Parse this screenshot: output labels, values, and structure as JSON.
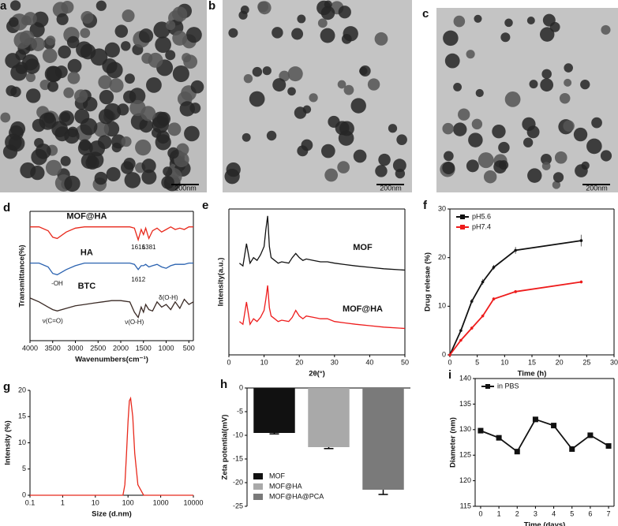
{
  "images": [
    {
      "label": "a",
      "scale_bar": "200nm"
    },
    {
      "label": "b",
      "scale_bar": "200nm"
    },
    {
      "label": "c",
      "scale_bar": "200nm"
    }
  ],
  "chart_data": [
    {
      "type": "line",
      "panel_label": "d",
      "ylabel": "Transmittance(%)",
      "xlabel": "Wavenumbers(cm⁻¹)",
      "x": [
        4000,
        3800,
        3600,
        3500,
        3400,
        3200,
        3000,
        2800,
        2600,
        2400,
        2200,
        2000,
        1800,
        1700,
        1616,
        1550,
        1500,
        1450,
        1381,
        1300,
        1200,
        1100,
        1000,
        900,
        800,
        700,
        600,
        500,
        400
      ],
      "series": [
        {
          "name": "MOF@HA",
          "color": "#e8291c",
          "values": [
            88,
            88,
            85,
            80,
            79,
            84,
            87,
            88,
            88,
            88,
            88,
            88,
            88,
            87,
            78,
            86,
            82,
            87,
            79,
            85,
            87,
            84,
            86,
            88,
            86,
            87,
            86,
            88,
            88
          ]
        },
        {
          "name": "HA",
          "color": "#2a62b0",
          "values": [
            60,
            60,
            57,
            52,
            51,
            55,
            58,
            60,
            60,
            60,
            60,
            60,
            60,
            59,
            55,
            58,
            58,
            59,
            57,
            58,
            59,
            57,
            56,
            58,
            59,
            59,
            59,
            60,
            60
          ]
        },
        {
          "name": "BTC",
          "color": "#3a2a25",
          "values": [
            33,
            30,
            26,
            24,
            23,
            25,
            27,
            28,
            29,
            30,
            31,
            31,
            30,
            22,
            18,
            26,
            22,
            28,
            24,
            23,
            30,
            26,
            28,
            24,
            30,
            25,
            32,
            28,
            30
          ]
        }
      ],
      "annotations": [
        "1616",
        "1381",
        "-OH",
        "1612",
        "ν(C=O)",
        "ν(O-H)",
        "δ(O-H)"
      ],
      "xlim": [
        4000,
        400
      ],
      "xticks": [
        4000,
        3500,
        3000,
        2500,
        2000,
        1500,
        1000,
        500
      ],
      "ylim": [
        0,
        100
      ],
      "yticks": []
    },
    {
      "type": "line",
      "panel_label": "e",
      "ylabel": "Intensity(a.u.)",
      "xlabel": "2θ(°)",
      "x": [
        3,
        4,
        5,
        6,
        7,
        8,
        9,
        10,
        10.5,
        11,
        11.5,
        12,
        13,
        14,
        15,
        17,
        18,
        19,
        20,
        21,
        22,
        24,
        26,
        28,
        30,
        33,
        36,
        40,
        44,
        50
      ],
      "series": [
        {
          "name": "MOF",
          "color": "#111111",
          "values": [
            66,
            64,
            80,
            66,
            70,
            68,
            72,
            78,
            90,
            100,
            78,
            70,
            68,
            66,
            67,
            66,
            70,
            73,
            70,
            68,
            69,
            68,
            67,
            67,
            66,
            65,
            64,
            63,
            62,
            61
          ]
        },
        {
          "name": "MOF@HA",
          "color": "#ee1c1c",
          "values": [
            24,
            22,
            38,
            22,
            26,
            24,
            27,
            32,
            40,
            50,
            34,
            28,
            26,
            24,
            25,
            24,
            27,
            32,
            28,
            26,
            28,
            27,
            26,
            26,
            24,
            23,
            22,
            21,
            20,
            19
          ]
        }
      ],
      "xlim": [
        0,
        50
      ],
      "xticks": [
        0,
        10,
        20,
        30,
        40,
        50
      ],
      "ylim": [
        0,
        105
      ],
      "yticks": []
    },
    {
      "type": "line",
      "panel_label": "f",
      "ylabel": "Drug relesae (%)",
      "xlabel": "Time (h)",
      "legend": "upper left",
      "x": [
        0,
        2,
        4,
        6,
        8,
        12,
        24
      ],
      "series": [
        {
          "name": "pH5.6",
          "color": "#111111",
          "values": [
            0,
            5,
            11,
            15,
            18,
            21.5,
            23.5
          ],
          "errors": [
            0,
            0.3,
            0.5,
            0.6,
            0.5,
            0.7,
            1.2
          ]
        },
        {
          "name": "pH7.4",
          "color": "#ee1c1c",
          "values": [
            0,
            3,
            5.5,
            8,
            11.5,
            13,
            15
          ],
          "errors": [
            0,
            0.2,
            0.3,
            0.3,
            0.3,
            0.3,
            0.3
          ]
        }
      ],
      "xlim": [
        0,
        30
      ],
      "xticks": [
        0,
        5,
        10,
        15,
        20,
        25,
        30
      ],
      "ylim": [
        0,
        30
      ],
      "yticks": [
        0,
        10,
        20,
        30
      ]
    },
    {
      "type": "line",
      "panel_label": "g",
      "ylabel": "Intensity (%)",
      "xlabel": "Size (d.nm)",
      "log_x": true,
      "x": [
        0.1,
        1,
        10,
        50,
        70,
        80,
        90,
        100,
        110,
        120,
        140,
        160,
        200,
        300,
        1000,
        10000
      ],
      "series": [
        {
          "name": "Intensity",
          "color": "#e8291c",
          "values": [
            0,
            0,
            0,
            0,
            0,
            2,
            8,
            14,
            18,
            18.5,
            15,
            8,
            2,
            0,
            0,
            0
          ]
        }
      ],
      "xlim": [
        0.1,
        10000
      ],
      "xticks": [
        0.1,
        1,
        10,
        100,
        1000,
        10000
      ],
      "ylim": [
        0,
        20
      ],
      "yticks": [
        0,
        5,
        10,
        15,
        20
      ]
    },
    {
      "type": "bar",
      "panel_label": "h",
      "ylabel": "Zeta potential(mV)",
      "legend": "lower left",
      "categories": [
        "MOF",
        "MOF@HA",
        "MOF@HA@PCA"
      ],
      "values": [
        -9.5,
        -12.5,
        -21.5
      ],
      "errors": [
        0.2,
        0.3,
        1
      ],
      "colors": [
        "#111111",
        "#a9a9a9",
        "#7a7a7a"
      ],
      "ylim": [
        -25,
        0
      ],
      "yticks": [
        0,
        -5,
        -10,
        -15,
        -20,
        -25
      ]
    },
    {
      "type": "line",
      "panel_label": "i",
      "ylabel": "Diameter (nm)",
      "xlabel": "Time (days)",
      "legend": "upper left",
      "x": [
        0,
        1,
        2,
        3,
        4,
        5,
        6,
        7
      ],
      "series": [
        {
          "name": "in PBS",
          "color": "#111111",
          "marker": true,
          "values": [
            129.8,
            128.4,
            125.7,
            132,
            130.8,
            126.2,
            128.9,
            126.8
          ]
        }
      ],
      "xlim": [
        -0.3,
        7.3
      ],
      "xticks": [
        0,
        1,
        2,
        3,
        4,
        5,
        6,
        7
      ],
      "ylim": [
        115,
        140
      ],
      "yticks": [
        115,
        120,
        125,
        130,
        135,
        140
      ]
    }
  ]
}
